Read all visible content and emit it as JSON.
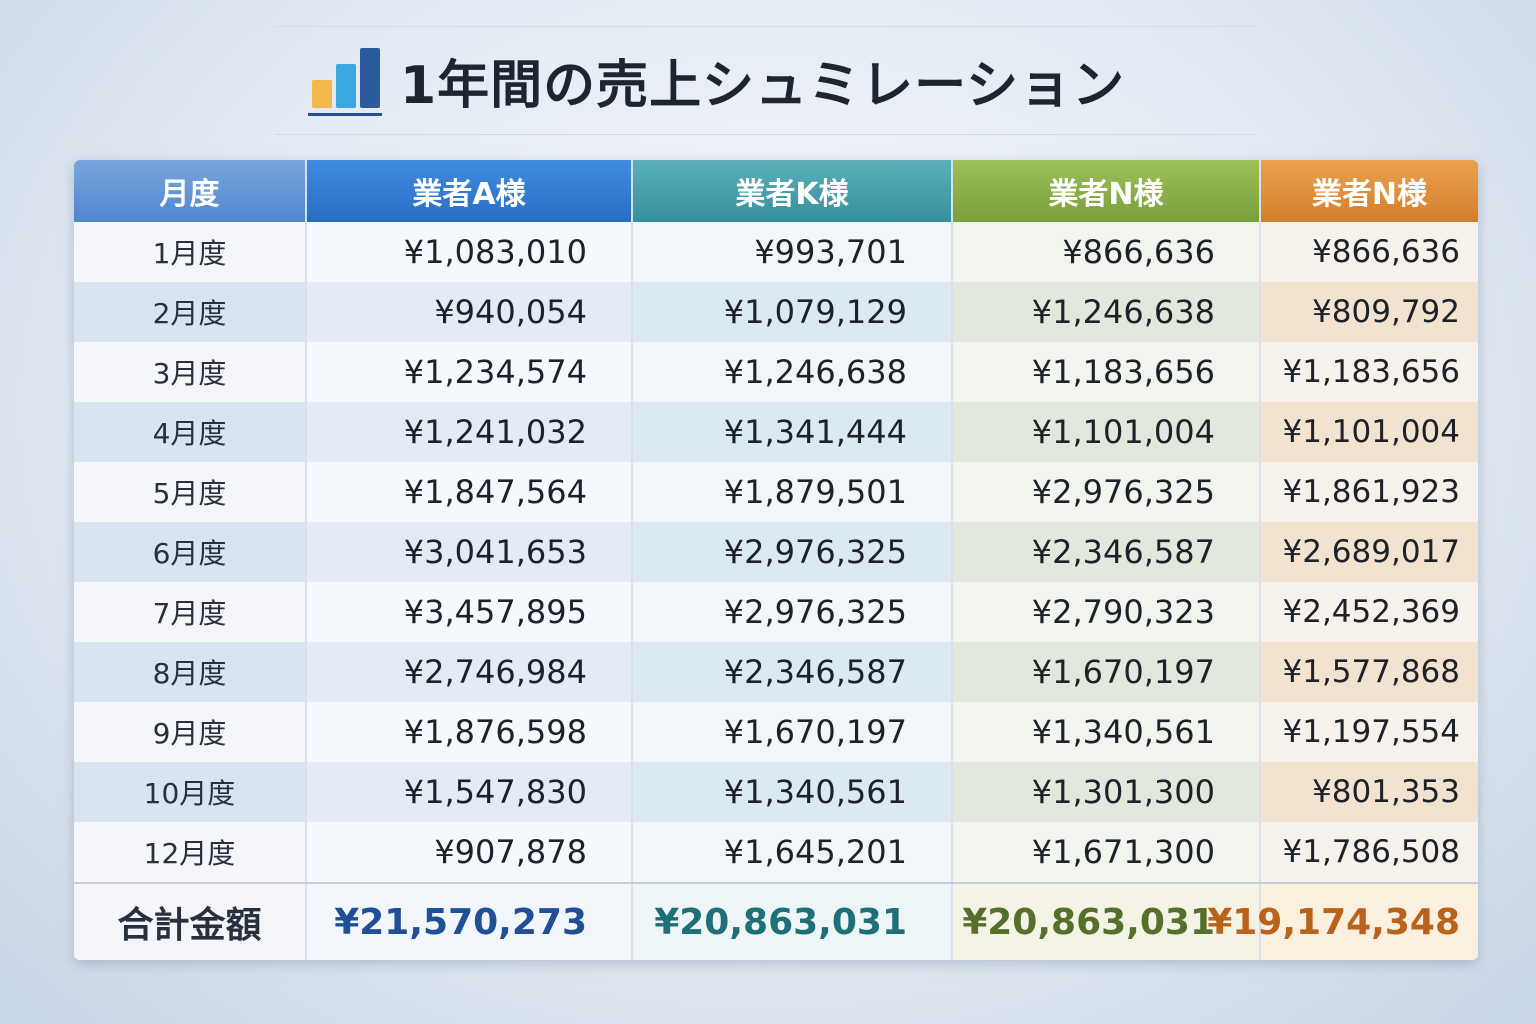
{
  "title": "1年間の売上シュミレーション",
  "icon": "bar-chart-icon",
  "colors": {
    "col_a": "#2f74c8",
    "col_k": "#3e9aa6",
    "col_n1": "#86a943",
    "col_n2": "#dc8a35"
  },
  "headers": [
    "月度",
    "業者A様",
    "業者K様",
    "業者N様",
    "業者N様"
  ],
  "rows": [
    [
      "1月度",
      "¥1,083,010",
      "¥993,701",
      "¥866,636",
      "¥866,636"
    ],
    [
      "2月度",
      "¥940,054",
      "¥1,079,129",
      "¥1,246,638",
      "¥809,792"
    ],
    [
      "3月度",
      "¥1,234,574",
      "¥1,246,638",
      "¥1,183,656",
      "¥1,183,656"
    ],
    [
      "4月度",
      "¥1,241,032",
      "¥1,341,444",
      "¥1,101,004",
      "¥1,101,004"
    ],
    [
      "5月度",
      "¥1,847,564",
      "¥1,879,501",
      "¥2,976,325",
      "¥1,861,923"
    ],
    [
      "6月度",
      "¥3,041,653",
      "¥2,976,325",
      "¥2,346,587",
      "¥2,689,017"
    ],
    [
      "7月度",
      "¥3,457,895",
      "¥2,976,325",
      "¥2,790,323",
      "¥2,452,369"
    ],
    [
      "8月度",
      "¥2,746,984",
      "¥2,346,587",
      "¥1,670,197",
      "¥1,577,868"
    ],
    [
      "9月度",
      "¥1,876,598",
      "¥1,670,197",
      "¥1,340,561",
      "¥1,197,554"
    ],
    [
      "10月度",
      "¥1,547,830",
      "¥1,340,561",
      "¥1,301,300",
      "¥801,353"
    ],
    [
      "12月度",
      "¥907,878",
      "¥1,645,201",
      "¥1,671,300",
      "¥1,786,508"
    ]
  ],
  "total": [
    "合計金額",
    "¥21,570,273",
    "¥20,863,031",
    "¥20,863,031",
    "¥19,174,348"
  ]
}
